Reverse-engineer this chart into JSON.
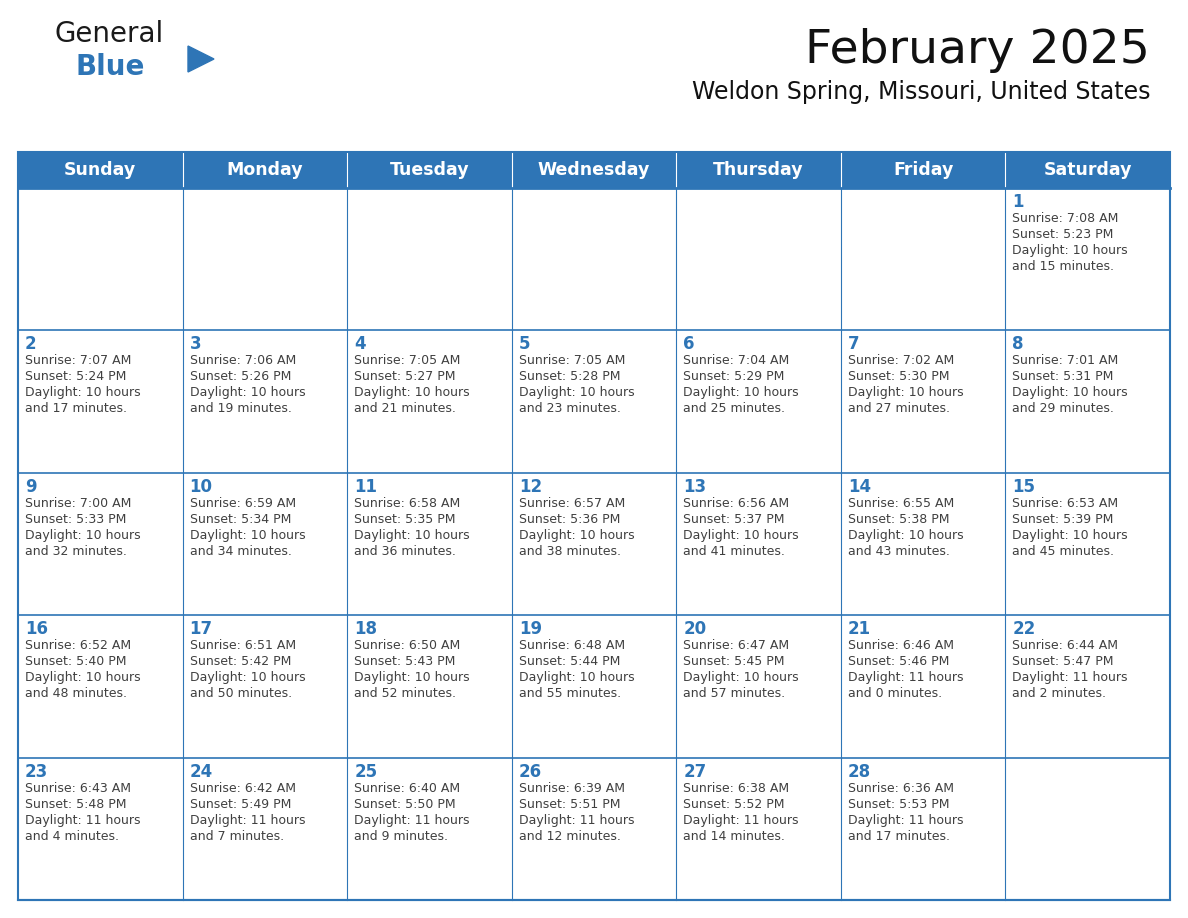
{
  "title": "February 2025",
  "subtitle": "Weldon Spring, Missouri, United States",
  "header_bg": "#2E75B6",
  "header_text_color": "#FFFFFF",
  "cell_bg": "#FFFFFF",
  "border_color": "#2E75B6",
  "row_border_color": "#4472C4",
  "text_color": "#404040",
  "day_num_color": "#2E75B6",
  "days_of_week": [
    "Sunday",
    "Monday",
    "Tuesday",
    "Wednesday",
    "Thursday",
    "Friday",
    "Saturday"
  ],
  "weeks": [
    [
      {
        "day": "",
        "info": ""
      },
      {
        "day": "",
        "info": ""
      },
      {
        "day": "",
        "info": ""
      },
      {
        "day": "",
        "info": ""
      },
      {
        "day": "",
        "info": ""
      },
      {
        "day": "",
        "info": ""
      },
      {
        "day": "1",
        "info": "Sunrise: 7:08 AM\nSunset: 5:23 PM\nDaylight: 10 hours\nand 15 minutes."
      }
    ],
    [
      {
        "day": "2",
        "info": "Sunrise: 7:07 AM\nSunset: 5:24 PM\nDaylight: 10 hours\nand 17 minutes."
      },
      {
        "day": "3",
        "info": "Sunrise: 7:06 AM\nSunset: 5:26 PM\nDaylight: 10 hours\nand 19 minutes."
      },
      {
        "day": "4",
        "info": "Sunrise: 7:05 AM\nSunset: 5:27 PM\nDaylight: 10 hours\nand 21 minutes."
      },
      {
        "day": "5",
        "info": "Sunrise: 7:05 AM\nSunset: 5:28 PM\nDaylight: 10 hours\nand 23 minutes."
      },
      {
        "day": "6",
        "info": "Sunrise: 7:04 AM\nSunset: 5:29 PM\nDaylight: 10 hours\nand 25 minutes."
      },
      {
        "day": "7",
        "info": "Sunrise: 7:02 AM\nSunset: 5:30 PM\nDaylight: 10 hours\nand 27 minutes."
      },
      {
        "day": "8",
        "info": "Sunrise: 7:01 AM\nSunset: 5:31 PM\nDaylight: 10 hours\nand 29 minutes."
      }
    ],
    [
      {
        "day": "9",
        "info": "Sunrise: 7:00 AM\nSunset: 5:33 PM\nDaylight: 10 hours\nand 32 minutes."
      },
      {
        "day": "10",
        "info": "Sunrise: 6:59 AM\nSunset: 5:34 PM\nDaylight: 10 hours\nand 34 minutes."
      },
      {
        "day": "11",
        "info": "Sunrise: 6:58 AM\nSunset: 5:35 PM\nDaylight: 10 hours\nand 36 minutes."
      },
      {
        "day": "12",
        "info": "Sunrise: 6:57 AM\nSunset: 5:36 PM\nDaylight: 10 hours\nand 38 minutes."
      },
      {
        "day": "13",
        "info": "Sunrise: 6:56 AM\nSunset: 5:37 PM\nDaylight: 10 hours\nand 41 minutes."
      },
      {
        "day": "14",
        "info": "Sunrise: 6:55 AM\nSunset: 5:38 PM\nDaylight: 10 hours\nand 43 minutes."
      },
      {
        "day": "15",
        "info": "Sunrise: 6:53 AM\nSunset: 5:39 PM\nDaylight: 10 hours\nand 45 minutes."
      }
    ],
    [
      {
        "day": "16",
        "info": "Sunrise: 6:52 AM\nSunset: 5:40 PM\nDaylight: 10 hours\nand 48 minutes."
      },
      {
        "day": "17",
        "info": "Sunrise: 6:51 AM\nSunset: 5:42 PM\nDaylight: 10 hours\nand 50 minutes."
      },
      {
        "day": "18",
        "info": "Sunrise: 6:50 AM\nSunset: 5:43 PM\nDaylight: 10 hours\nand 52 minutes."
      },
      {
        "day": "19",
        "info": "Sunrise: 6:48 AM\nSunset: 5:44 PM\nDaylight: 10 hours\nand 55 minutes."
      },
      {
        "day": "20",
        "info": "Sunrise: 6:47 AM\nSunset: 5:45 PM\nDaylight: 10 hours\nand 57 minutes."
      },
      {
        "day": "21",
        "info": "Sunrise: 6:46 AM\nSunset: 5:46 PM\nDaylight: 11 hours\nand 0 minutes."
      },
      {
        "day": "22",
        "info": "Sunrise: 6:44 AM\nSunset: 5:47 PM\nDaylight: 11 hours\nand 2 minutes."
      }
    ],
    [
      {
        "day": "23",
        "info": "Sunrise: 6:43 AM\nSunset: 5:48 PM\nDaylight: 11 hours\nand 4 minutes."
      },
      {
        "day": "24",
        "info": "Sunrise: 6:42 AM\nSunset: 5:49 PM\nDaylight: 11 hours\nand 7 minutes."
      },
      {
        "day": "25",
        "info": "Sunrise: 6:40 AM\nSunset: 5:50 PM\nDaylight: 11 hours\nand 9 minutes."
      },
      {
        "day": "26",
        "info": "Sunrise: 6:39 AM\nSunset: 5:51 PM\nDaylight: 11 hours\nand 12 minutes."
      },
      {
        "day": "27",
        "info": "Sunrise: 6:38 AM\nSunset: 5:52 PM\nDaylight: 11 hours\nand 14 minutes."
      },
      {
        "day": "28",
        "info": "Sunrise: 6:36 AM\nSunset: 5:53 PM\nDaylight: 11 hours\nand 17 minutes."
      },
      {
        "day": "",
        "info": ""
      }
    ]
  ],
  "logo_text_general": "General",
  "logo_text_blue": "Blue",
  "logo_color_general": "#1a1a1a",
  "logo_color_blue": "#2E75B6",
  "logo_triangle_color": "#2E75B6",
  "fig_width": 11.88,
  "fig_height": 9.18,
  "dpi": 100
}
